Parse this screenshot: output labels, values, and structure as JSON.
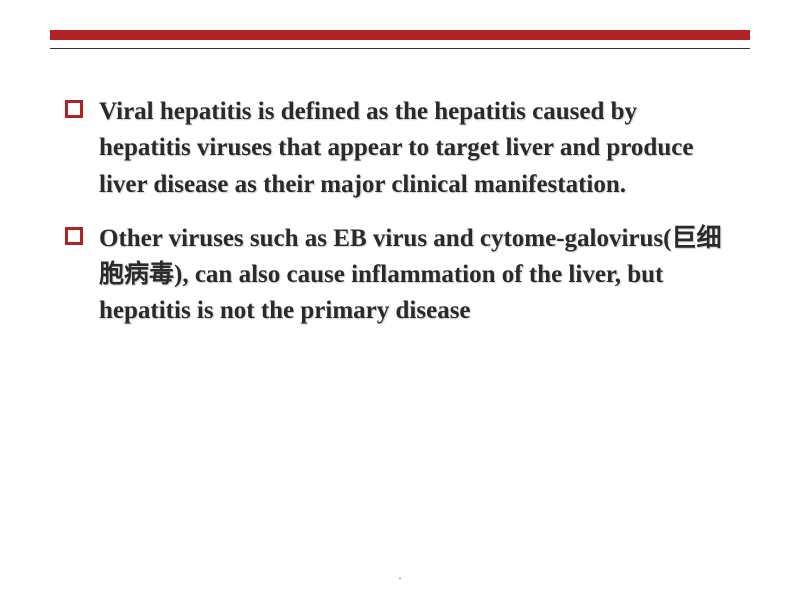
{
  "styling": {
    "background_color": "#ffffff",
    "accent_color": "#b22222",
    "text_color": "#2a2a2a",
    "divider_color": "#333333",
    "red_bar_height": 10,
    "thin_line_height": 1,
    "body_fontsize": 25,
    "body_fontweight": "bold",
    "font_family": "Times New Roman",
    "line_height": 1.45,
    "bullet_size": 18,
    "bullet_border_width": 3,
    "slide_width": 800,
    "slide_height": 600
  },
  "bullets": [
    {
      "text": "Viral hepatitis is defined as the hepatitis caused by hepatitis viruses that appear to target liver and produce liver disease as their major clinical manifestation."
    },
    {
      "text": " Other viruses such as EB virus  and cytome-galovirus(巨细胞病毒), can also cause inflammation of the liver, but hepatitis is not the primary disease"
    }
  ],
  "footer": {
    "page_marker": "."
  }
}
